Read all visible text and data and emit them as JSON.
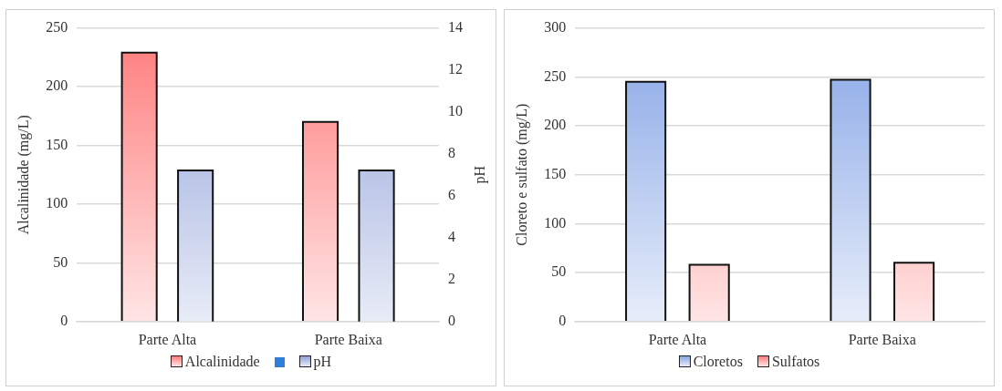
{
  "chart_data": [
    {
      "type": "bar",
      "categories": [
        "Parte Alta",
        "Parte Baixa"
      ],
      "ylabel": "Alcalinidade (mg/L)",
      "y2label": "pH",
      "series": [
        {
          "name": "Alcalinidade",
          "color": "#ff7b7b",
          "values": [
            229,
            170
          ]
        },
        {
          "name": "pH",
          "color": "#8d9ed8",
          "values": [
            7.2,
            7.2
          ],
          "axis": "y2"
        }
      ],
      "ylim": [
        0,
        250
      ],
      "yticks": [
        0,
        50,
        100,
        150,
        200,
        250
      ],
      "y2lim": [
        0,
        14
      ],
      "y2ticks": [
        0,
        2,
        4,
        6,
        8,
        10,
        12,
        14
      ],
      "grid": "y",
      "legend": "bottom"
    },
    {
      "type": "bar",
      "categories": [
        "Parte Alta",
        "Parte Baixa"
      ],
      "ylabel": "Cloreto e sulfato (mg/L)",
      "series": [
        {
          "name": "Cloretos",
          "color": "#86a6e6",
          "values": [
            245,
            247
          ]
        },
        {
          "name": "Sulfatos",
          "color": "#ff7b7b",
          "values": [
            58,
            60
          ]
        }
      ],
      "ylim": [
        0,
        300
      ],
      "yticks": [
        0,
        50,
        100,
        150,
        200,
        250,
        300
      ],
      "grid": "y",
      "legend": "bottom"
    }
  ]
}
